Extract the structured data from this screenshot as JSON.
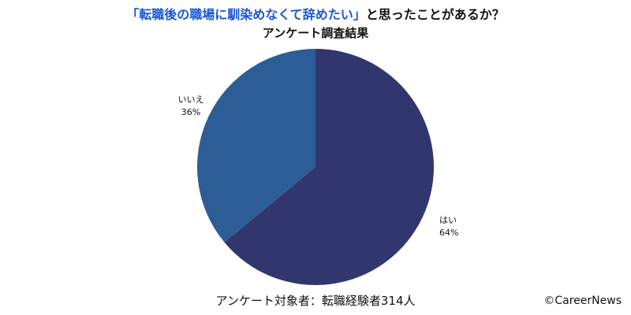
{
  "chart_data": {
    "type": "pie",
    "title_highlight": "「転職後の職場に馴染めなくて辞めたい」",
    "title_rest": "と思ったことがあるか？",
    "subtitle": "アンケート調査結果",
    "slices": [
      {
        "label": "はい",
        "value": 64,
        "value_label": "64%",
        "color": "#32366f"
      },
      {
        "label": "いいえ",
        "value": 36,
        "value_label": "36%",
        "color": "#2d5d96"
      }
    ],
    "start": "12 o'clock",
    "direction": "clockwise",
    "highlight_color": "#1a56d6"
  },
  "footnote": "アンケート対象者：転職経験者314人",
  "credit": "©CareerNews"
}
